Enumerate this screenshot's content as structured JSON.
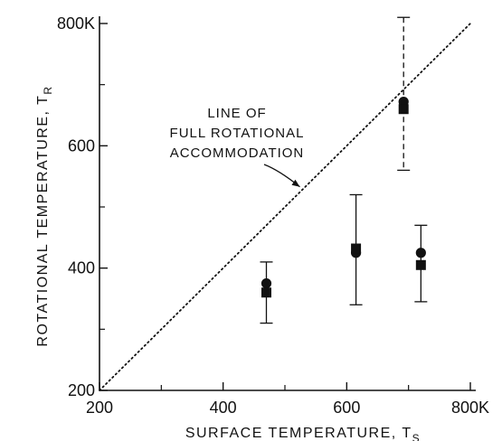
{
  "chart_data": {
    "type": "scatter",
    "xlabel": "SURFACE  TEMPERATURE, T",
    "xlabel_subscript": "S",
    "ylabel": "ROTATIONAL  TEMPERATURE, T",
    "ylabel_subscript": "R",
    "xlim": [
      200,
      800
    ],
    "ylim": [
      200,
      800
    ],
    "x_ticks": [
      200,
      400,
      600,
      800
    ],
    "x_tick_labels": [
      "200",
      "400",
      "600",
      "800K"
    ],
    "x_minor_ticks": [
      300,
      500,
      700
    ],
    "y_ticks": [
      200,
      400,
      600,
      800
    ],
    "y_tick_labels": [
      "200",
      "400",
      "600",
      "800K"
    ],
    "y_minor_ticks": [
      300,
      500,
      700
    ],
    "grid": false,
    "reference_line": {
      "style": "dotted",
      "x": [
        200,
        800
      ],
      "y": [
        200,
        800
      ],
      "annotation": [
        "LINE  OF",
        "FULL  ROTATIONAL",
        "ACCOMMODATION"
      ],
      "arrow_target": {
        "x": 530,
        "y": 530
      }
    },
    "series": [
      {
        "marker": "circle",
        "x": [
          470,
          615,
          692,
          720
        ],
        "y": [
          375,
          425,
          672,
          425
        ]
      },
      {
        "marker": "square",
        "x": [
          470,
          615,
          692,
          720
        ],
        "y": [
          360,
          432,
          660,
          405
        ]
      }
    ],
    "error_bars": [
      {
        "x": 470,
        "low": 310,
        "high": 410,
        "style": "solid"
      },
      {
        "x": 615,
        "low": 340,
        "high": 520,
        "style": "solid"
      },
      {
        "x": 692,
        "low": 560,
        "high": 810,
        "style": "dashed"
      },
      {
        "x": 720,
        "low": 345,
        "high": 470,
        "style": "solid"
      }
    ]
  }
}
